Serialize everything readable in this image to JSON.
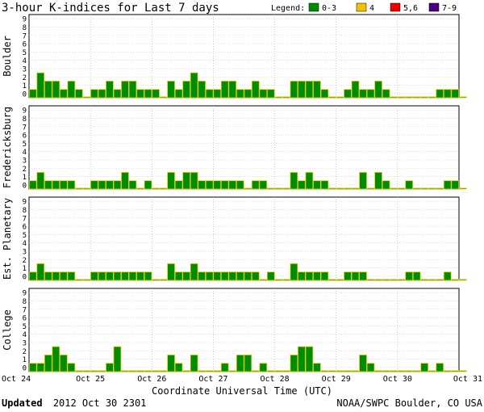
{
  "header": {
    "title": "3-hour K-indices for Last 7 days",
    "legend_label": "Legend:",
    "legend": [
      {
        "label": "0-3",
        "color": "#008c00"
      },
      {
        "label": "4",
        "color": "#f0c000"
      },
      {
        "label": "5,6",
        "color": "#ee0000"
      },
      {
        "label": "7-9",
        "color": "#4b0082"
      }
    ]
  },
  "footer": {
    "updated_label": "Updated",
    "updated_time": "2012 Oct 30 2301",
    "credit": "NOAA/SWPC Boulder, CO USA"
  },
  "chart_data": {
    "type": "bar",
    "xlabel": "Coordinate Universal Time (UTC)",
    "x_ticks": [
      "Oct 24",
      "Oct 25",
      "Oct 26",
      "Oct 27",
      "Oct 28",
      "Oct 29",
      "Oct 30",
      "Oct 31"
    ],
    "y_ticks": [
      "0",
      "1",
      "2",
      "3",
      "4",
      "5",
      "6",
      "7",
      "8",
      "9"
    ],
    "ylim": [
      0,
      9
    ],
    "intervals_per_day": 8,
    "bar_color": "#008c00",
    "bar_outline": "#e0d000",
    "grid": true,
    "panels": [
      {
        "name": "Boulder",
        "values": [
          1,
          3,
          2,
          2,
          1,
          2,
          1,
          0,
          1,
          1,
          2,
          1,
          2,
          2,
          1,
          1,
          1,
          0,
          2,
          1,
          2,
          3,
          2,
          1,
          1,
          2,
          2,
          1,
          1,
          2,
          1,
          1,
          0,
          0,
          2,
          2,
          2,
          2,
          1,
          0,
          0,
          1,
          2,
          1,
          1,
          2,
          1,
          0,
          0,
          0,
          0,
          0,
          0,
          1,
          1,
          1,
          0
        ]
      },
      {
        "name": "Fredericksburg",
        "values": [
          1,
          2,
          1,
          1,
          1,
          1,
          0,
          0,
          1,
          1,
          1,
          1,
          2,
          1,
          0,
          1,
          0,
          0,
          2,
          1,
          2,
          2,
          1,
          1,
          1,
          1,
          1,
          1,
          0,
          1,
          1,
          0,
          0,
          0,
          2,
          1,
          2,
          1,
          1,
          0,
          0,
          0,
          0,
          2,
          0,
          2,
          1,
          0,
          0,
          1,
          0,
          0,
          0,
          0,
          1,
          1,
          0
        ]
      },
      {
        "name": "Est. Planetary",
        "values": [
          1,
          2,
          1,
          1,
          1,
          1,
          0,
          0,
          1,
          1,
          1,
          1,
          1,
          1,
          1,
          1,
          0,
          0,
          2,
          1,
          1,
          2,
          1,
          1,
          1,
          1,
          1,
          1,
          1,
          1,
          0,
          1,
          0,
          0,
          2,
          1,
          1,
          1,
          1,
          0,
          0,
          1,
          1,
          1,
          0,
          0,
          0,
          0,
          0,
          1,
          1,
          0,
          0,
          0,
          1,
          0,
          0
        ]
      },
      {
        "name": "College",
        "values": [
          1,
          1,
          2,
          3,
          2,
          1,
          0,
          0,
          0,
          0,
          1,
          3,
          0,
          0,
          0,
          0,
          0,
          0,
          2,
          1,
          0,
          2,
          0,
          0,
          0,
          1,
          0,
          2,
          2,
          0,
          1,
          0,
          0,
          0,
          2,
          3,
          3,
          1,
          0,
          0,
          0,
          0,
          0,
          2,
          1,
          0,
          0,
          0,
          0,
          0,
          0,
          1,
          0,
          1,
          0,
          0,
          0
        ]
      }
    ]
  }
}
